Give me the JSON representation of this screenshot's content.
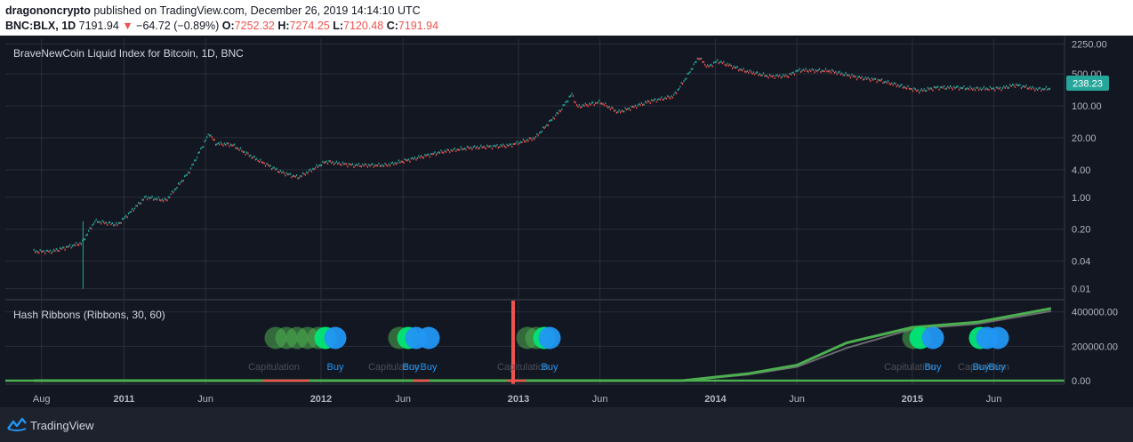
{
  "header": {
    "author": "dragononcrypto",
    "published": " published on TradingView.com, December 26, 2019 14:14:10 UTC",
    "symbol": "BNC:BLX, 1D",
    "last": "7191.94",
    "change": "−64.72 (−0.89%)",
    "o_label": "O:",
    "o_val": "7252.32",
    "h_label": "H:",
    "h_val": "7274.25",
    "l_label": "L:",
    "l_val": "7120.48",
    "c_label": "C:",
    "c_val": "7191.94"
  },
  "footer": {
    "brand": "TradingView"
  },
  "colors": {
    "bg": "#131722",
    "grid": "#2a2e39",
    "text": "#b2b5be",
    "up": "#26a69a",
    "down": "#ef5350",
    "green": "#00e676",
    "dim_green": "#4caf50",
    "blue": "#2196f3"
  },
  "chart_data": [
    {
      "type": "line",
      "title": "BraveNewCoin Liquid Index for Bitcoin, 1D, BNC",
      "y_scale": "log",
      "y_ticks": [
        "2250.00",
        "500.00",
        "100.00",
        "20.00",
        "4.00",
        "1.00",
        "0.20",
        "0.04",
        "0.01"
      ],
      "last_price_label": "238.23",
      "x_ticks": [
        "Aug",
        "2011",
        "Jun",
        "2012",
        "Jun",
        "2013",
        "Jun",
        "2014",
        "Jun",
        "2015",
        "Jun"
      ],
      "x": [
        "2010-07-18",
        "2010-08-20",
        "2010-10-15",
        "2010-11-08",
        "2010-12-20",
        "2011-02-10",
        "2011-03-20",
        "2011-05-01",
        "2011-06-08",
        "2011-06-20",
        "2011-07-20",
        "2011-09-01",
        "2011-10-20",
        "2011-11-20",
        "2012-01-10",
        "2012-03-01",
        "2012-05-01",
        "2012-08-15",
        "2012-10-01",
        "2012-12-15",
        "2013-02-01",
        "2013-03-20",
        "2013-04-10",
        "2013-04-20",
        "2013-06-01",
        "2013-07-05",
        "2013-09-01",
        "2013-10-15",
        "2013-11-10",
        "2013-12-01",
        "2013-12-18",
        "2014-01-05",
        "2014-02-20",
        "2014-04-10",
        "2014-05-15",
        "2014-06-05",
        "2014-08-01",
        "2014-09-20",
        "2014-11-01",
        "2015-01-14",
        "2015-02-15",
        "2015-03-20",
        "2015-05-01",
        "2015-06-15",
        "2015-07-10",
        "2015-08-20",
        "2015-09-15"
      ],
      "close": [
        0.065,
        0.065,
        0.1,
        0.3,
        0.25,
        1.0,
        0.85,
        3.5,
        25,
        15,
        14,
        7,
        3.5,
        2.7,
        6.0,
        5.0,
        5.0,
        10.0,
        12.0,
        13.5,
        20,
        80,
        180,
        95,
        120,
        72,
        125,
        160,
        450,
        1150,
        700,
        950,
        600,
        440,
        450,
        600,
        580,
        420,
        360,
        210,
        250,
        250,
        235,
        240,
        285,
        230,
        238
      ]
    },
    {
      "type": "line",
      "title": "Hash Ribbons (Ribbons, 30, 60)",
      "y_ticks": [
        "400000.00",
        "200000.00",
        "0.00"
      ],
      "x": [
        "2010-07-18",
        "2012-01-01",
        "2013-01-01",
        "2013-11-01",
        "2014-03-01",
        "2014-06-01",
        "2014-09-01",
        "2015-01-01",
        "2015-05-01",
        "2015-09-15"
      ],
      "series": [
        {
          "values": [
            0,
            0,
            0,
            10,
            40000,
            90000,
            220000,
            310000,
            340000,
            420000
          ]
        },
        {
          "values": [
            0,
            0,
            0,
            8,
            35000,
            80000,
            190000,
            300000,
            330000,
            405000
          ]
        }
      ],
      "signal_labels": [
        "Capitulation",
        "Buy",
        "Capitulation",
        "Buy",
        "Buy",
        "Capitulation",
        "Buy",
        "Capitulation",
        "Buy",
        "Capitulation",
        "Buy",
        "Buy"
      ]
    }
  ]
}
